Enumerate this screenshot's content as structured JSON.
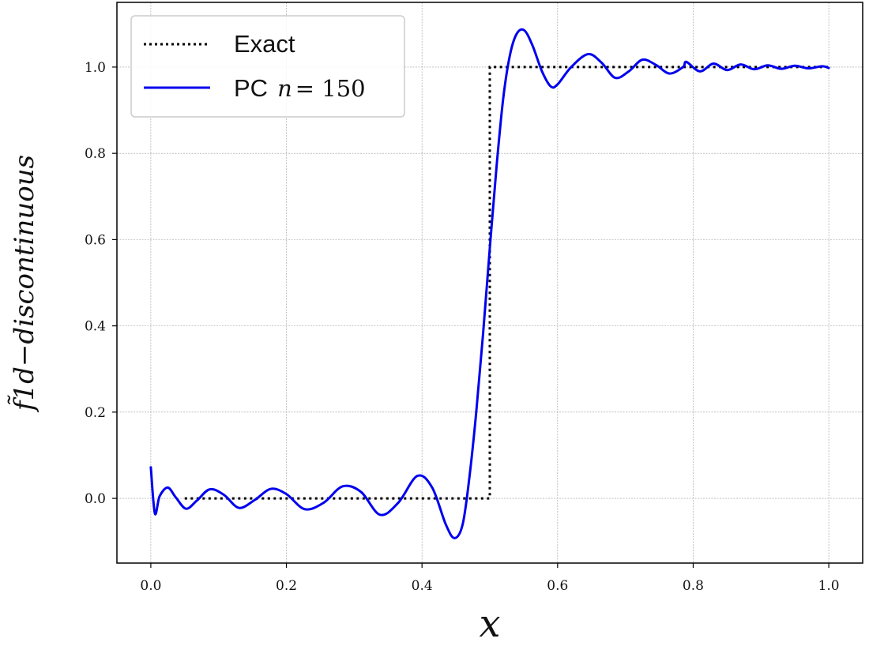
{
  "chart_data": {
    "type": "line",
    "xlabel": "x",
    "ylabel": "f̃1d−discontinuous",
    "xlim": [
      -0.05,
      1.05
    ],
    "ylim": [
      -0.15,
      1.15
    ],
    "xticks": [
      0.0,
      0.2,
      0.4,
      0.6,
      0.8,
      1.0
    ],
    "xtick_labels": [
      "0.0",
      "0.2",
      "0.4",
      "0.6",
      "0.8",
      "1.0"
    ],
    "yticks": [
      0.0,
      0.2,
      0.4,
      0.6,
      0.8,
      1.0
    ],
    "ytick_labels": [
      "0.0",
      "0.2",
      "0.4",
      "0.6",
      "0.8",
      "1.0"
    ],
    "grid": true,
    "legend_position": "top-left",
    "series": [
      {
        "name": "Exact",
        "style": "dotted",
        "color": "#000000",
        "x": [
          0.05,
          0.5,
          0.5,
          1.0
        ],
        "y": [
          0.0,
          0.0,
          1.0,
          1.0
        ]
      },
      {
        "name": "PC n = 150",
        "legend_prefix": "PC",
        "legend_math_var": "n",
        "legend_math_rest": " = 150",
        "style": "solid",
        "color": "#0000ee",
        "x": [
          0.0,
          0.006,
          0.013,
          0.025,
          0.037,
          0.052,
          0.068,
          0.087,
          0.108,
          0.13,
          0.153,
          0.177,
          0.2,
          0.227,
          0.255,
          0.283,
          0.31,
          0.338,
          0.365,
          0.393,
          0.415,
          0.435,
          0.448,
          0.46,
          0.47,
          0.48,
          0.49,
          0.5,
          0.51,
          0.52,
          0.53,
          0.54,
          0.551,
          0.563,
          0.577,
          0.59,
          0.6,
          0.62,
          0.645,
          0.665,
          0.685,
          0.705,
          0.725,
          0.745,
          0.765,
          0.785,
          0.79,
          0.81,
          0.83,
          0.85,
          0.87,
          0.89,
          0.91,
          0.93,
          0.95,
          0.97,
          0.99,
          1.0
        ],
        "y": [
          0.072,
          -0.035,
          0.005,
          0.025,
          0.002,
          -0.024,
          -0.005,
          0.021,
          0.008,
          -0.022,
          -0.004,
          0.022,
          0.01,
          -0.025,
          -0.01,
          0.028,
          0.015,
          -0.038,
          -0.01,
          0.052,
          0.025,
          -0.06,
          -0.092,
          -0.06,
          0.05,
          0.2,
          0.38,
          0.58,
          0.77,
          0.93,
          1.03,
          1.078,
          1.085,
          1.05,
          0.99,
          0.955,
          0.96,
          1.0,
          1.03,
          1.01,
          0.975,
          0.99,
          1.017,
          1.005,
          0.985,
          1.0,
          1.012,
          0.99,
          1.008,
          0.993,
          1.006,
          0.995,
          1.004,
          0.996,
          1.003,
          0.997,
          1.002,
          0.998
        ]
      }
    ]
  }
}
